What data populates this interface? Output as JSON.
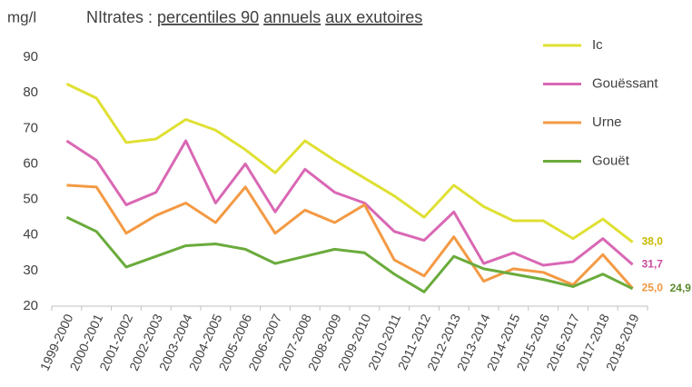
{
  "chart_data": {
    "type": "line",
    "y_unit": "mg/l",
    "title": {
      "lead": "NItrates :",
      "underlined": [
        "percentiles 90",
        "annuels",
        "aux exutoires"
      ]
    },
    "categories": [
      "1999-2000",
      "2000-2001",
      "2001-2002",
      "2002-2003",
      "2003-2004",
      "2004-2005",
      "2005-2006",
      "2006-2007",
      "2007-2008",
      "2008-2009",
      "2009-2010",
      "2010-2011",
      "2011-2012",
      "2012-2013",
      "2013-2014",
      "2014-2015",
      "2015-2016",
      "2016-2017",
      "2017-2018",
      "2018-2019"
    ],
    "series": [
      {
        "name": "Ic",
        "color": "#dfe033",
        "label_color": "#c9b800",
        "values": [
          82.5,
          78.5,
          66,
          67,
          72.5,
          69.5,
          64,
          57.5,
          66.5,
          61,
          56,
          51,
          45,
          54,
          48,
          44,
          44,
          39,
          44.5,
          38.0
        ],
        "value_labels": [
          null,
          null,
          null,
          null,
          null,
          null,
          null,
          null,
          null,
          null,
          null,
          null,
          null,
          null,
          null,
          null,
          null,
          null,
          null,
          "38,0"
        ]
      },
      {
        "name": "Gouëssant",
        "color": "#d968b4",
        "label_color": "#cc4d9e",
        "values": [
          66.5,
          61,
          48.5,
          52,
          66.5,
          49,
          60,
          46.5,
          58.5,
          52,
          49,
          41,
          38.5,
          46.5,
          32,
          35,
          31.5,
          32.5,
          39,
          31.7
        ],
        "value_labels": [
          null,
          null,
          null,
          null,
          null,
          null,
          null,
          null,
          null,
          null,
          null,
          null,
          null,
          null,
          null,
          null,
          null,
          null,
          null,
          "31,7"
        ]
      },
      {
        "name": "Urne",
        "color": "#f39a44",
        "label_color": "#f0973e",
        "values": [
          54,
          53.5,
          40.5,
          45.5,
          49,
          43.5,
          53.5,
          40.5,
          47,
          43.5,
          48.5,
          33,
          28.5,
          39.5,
          27,
          30.5,
          29.5,
          26,
          34.5,
          25.0
        ],
        "value_labels": [
          null,
          null,
          null,
          null,
          null,
          null,
          null,
          null,
          null,
          null,
          null,
          null,
          null,
          null,
          null,
          null,
          null,
          null,
          null,
          "25,0"
        ]
      },
      {
        "name": "Gouët",
        "color": "#6aab3c",
        "label_color": "#5a8a2c",
        "values": [
          45,
          41,
          31,
          34,
          37,
          37.5,
          36,
          32,
          34,
          36,
          35,
          29,
          24,
          34,
          30.5,
          29,
          27.5,
          25.5,
          29,
          24.9
        ],
        "value_labels": [
          null,
          null,
          null,
          null,
          null,
          null,
          null,
          null,
          null,
          null,
          null,
          null,
          null,
          null,
          null,
          null,
          null,
          null,
          null,
          "24,9"
        ]
      }
    ],
    "ylim": [
      20,
      90
    ],
    "yticks": [
      20,
      30,
      40,
      50,
      60,
      70,
      80,
      90
    ],
    "legend": "right"
  }
}
